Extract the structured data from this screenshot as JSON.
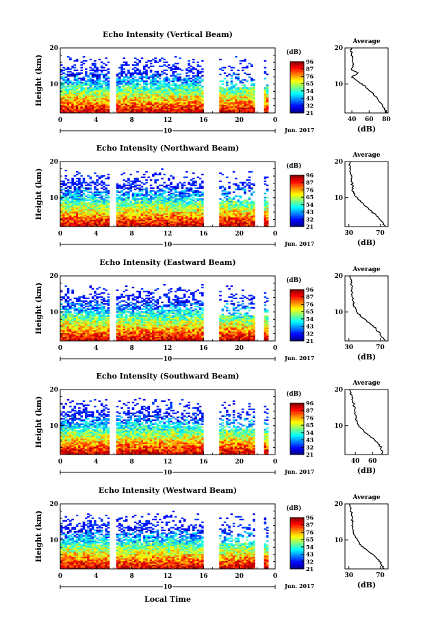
{
  "shared": {
    "ylabel": "Height (km)",
    "xlabel": "Local Time",
    "date_label": "10",
    "month_label": "Jun. 2017",
    "x_ticks": [
      "0",
      "4",
      "8",
      "12",
      "16",
      "20",
      "0"
    ],
    "y_ticks": [
      "20",
      "10"
    ],
    "colorbar_unit": "(dB)",
    "colorbar_ticks": [
      "96",
      "87",
      "76",
      "65",
      "54",
      "43",
      "32",
      "21"
    ],
    "average_title": "Average",
    "average_xlabel": "(dB)"
  },
  "chart_data": [
    {
      "type": "heatmap",
      "title": "Echo Intensity (Vertical Beam)",
      "x_range": [
        0,
        24
      ],
      "y_range": [
        2,
        20
      ],
      "c_range": [
        21,
        96
      ],
      "gaps": [
        [
          5.5,
          6.2
        ],
        [
          16,
          17.8
        ],
        [
          21.8,
          22.8
        ],
        [
          23.3,
          24
        ]
      ],
      "profile": {
        "type": "line",
        "title": "Average",
        "xlabel": "(dB)",
        "x_ticks": [
          "40",
          "60",
          "80"
        ],
        "xlim": [
          32,
          82
        ],
        "height": [
          2,
          4,
          6,
          8,
          10,
          12,
          13,
          14,
          16,
          18,
          20
        ],
        "db": [
          80,
          76,
          70,
          62,
          52,
          40,
          47,
          40,
          42,
          40,
          39
        ]
      }
    },
    {
      "type": "heatmap",
      "title": "Echo Intensity (Northward Beam)",
      "x_range": [
        0,
        24
      ],
      "y_range": [
        2,
        20
      ],
      "c_range": [
        21,
        96
      ],
      "gaps": [
        [
          5.5,
          6.2
        ],
        [
          16,
          17.8
        ],
        [
          21.8,
          22.8
        ],
        [
          23.3,
          24
        ]
      ],
      "profile": {
        "type": "line",
        "title": "Average",
        "xlabel": "(dB)",
        "x_ticks": [
          "30",
          "70"
        ],
        "xlim": [
          25,
          80
        ],
        "height": [
          2,
          4,
          6,
          8,
          10,
          12,
          14,
          16,
          18,
          20
        ],
        "db": [
          76,
          70,
          60,
          50,
          40,
          35,
          34,
          33,
          32,
          31
        ]
      }
    },
    {
      "type": "heatmap",
      "title": "Echo Intensity (Eastward Beam)",
      "x_range": [
        0,
        24
      ],
      "y_range": [
        2,
        20
      ],
      "c_range": [
        21,
        96
      ],
      "gaps": [
        [
          5.5,
          6.2
        ],
        [
          16,
          17.8
        ],
        [
          21.8,
          22.8
        ],
        [
          23.3,
          24
        ]
      ],
      "profile": {
        "type": "line",
        "title": "Average",
        "xlabel": "(dB)",
        "x_ticks": [
          "30",
          "70"
        ],
        "xlim": [
          25,
          80
        ],
        "height": [
          2,
          4,
          6,
          8,
          10,
          12,
          14,
          16,
          18,
          20
        ],
        "db": [
          76,
          70,
          62,
          50,
          40,
          36,
          35,
          34,
          33,
          32
        ]
      }
    },
    {
      "type": "heatmap",
      "title": "Echo Intensity (Southward Beam)",
      "x_range": [
        0,
        24
      ],
      "y_range": [
        2,
        20
      ],
      "c_range": [
        21,
        96
      ],
      "gaps": [
        [
          5.5,
          6.2
        ],
        [
          16,
          17.8
        ],
        [
          21.8,
          22.8
        ],
        [
          23.3,
          24
        ]
      ],
      "profile": {
        "type": "line",
        "title": "Average",
        "xlabel": "(dB)",
        "x_ticks": [
          "40",
          "60"
        ],
        "xlim": [
          28,
          78
        ],
        "height": [
          2,
          4,
          6,
          8,
          10,
          12,
          14,
          16,
          18,
          20
        ],
        "db": [
          72,
          70,
          62,
          52,
          44,
          40,
          40,
          38,
          36,
          33
        ]
      }
    },
    {
      "type": "heatmap",
      "title": "Echo Intensity (Westward Beam)",
      "x_range": [
        0,
        24
      ],
      "y_range": [
        2,
        20
      ],
      "c_range": [
        21,
        96
      ],
      "gaps": [
        [
          5.5,
          6.2
        ],
        [
          16,
          17.8
        ],
        [
          21.8,
          22.8
        ],
        [
          23.3,
          24
        ]
      ],
      "profile": {
        "type": "line",
        "title": "Average",
        "xlabel": "(dB)",
        "x_ticks": [
          "30",
          "70"
        ],
        "xlim": [
          25,
          80
        ],
        "height": [
          2,
          4,
          6,
          8,
          10,
          12,
          14,
          16,
          18,
          20
        ],
        "db": [
          74,
          70,
          60,
          48,
          40,
          36,
          35,
          34,
          33,
          32
        ]
      }
    }
  ]
}
